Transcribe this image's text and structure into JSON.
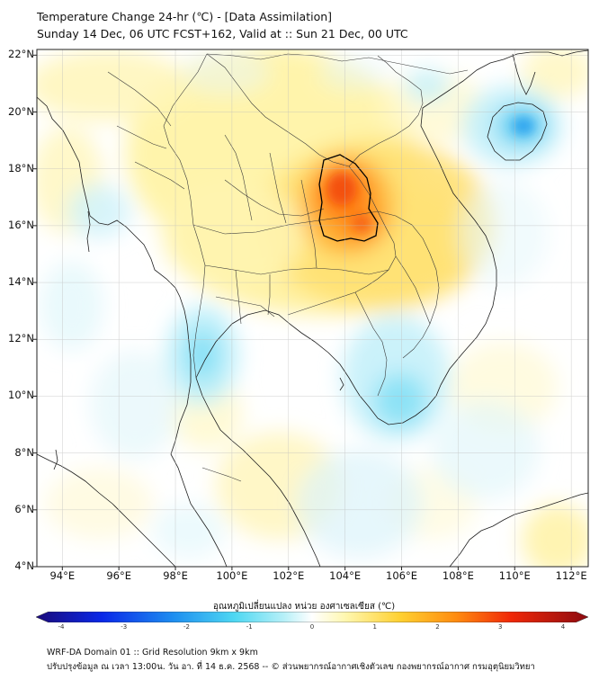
{
  "header": {
    "title_line1": "Temperature Change 24-hr (℃) - [Data Assimilation]",
    "title_line2": "Sunday 14 Dec, 06 UTC FCST+162, Valid at :: Sun 21 Dec, 00 UTC"
  },
  "map": {
    "lat_labels": [
      "22°N",
      "20°N",
      "18°N",
      "16°N",
      "14°N",
      "12°N",
      "10°N",
      "8°N",
      "6°N",
      "4°N"
    ],
    "lon_labels": [
      "94°E",
      "96°E",
      "98°E",
      "100°E",
      "102°E",
      "104°E",
      "106°E",
      "108°E",
      "110°E",
      "112°E"
    ],
    "lat_range": [
      4,
      22.2
    ],
    "lon_range": [
      93.1,
      112.6
    ],
    "background_color": "#ffffff",
    "grid": true
  },
  "colorbar": {
    "title": "อุณหภูมิเปลี่ยนแปลง หน่วย องศาเซลเซียส (℃)",
    "tick_labels": [
      "-4",
      "-3",
      "-2",
      "-1",
      "0",
      "1",
      "2",
      "3",
      "4"
    ],
    "range": [
      -4,
      4
    ],
    "colors": [
      "#1a0a7a",
      "#0a28e8",
      "#1e8ff0",
      "#4fd8f2",
      "#b8f0f8",
      "#ffffff",
      "#fff7b0",
      "#ffd030",
      "#ff8c10",
      "#f02808",
      "#8c0a10"
    ]
  },
  "footer": {
    "line1": "WRF-DA Domain 01 :: Grid Resolution 9km x 9km",
    "line2": "ปรับปรุงข้อมูล ณ เวลา 13:00น. วัน อา. ที่ 14 ธ.ค. 2568 -- © ส่วนพยากรณ์อากาศเชิงตัวเลข กองพยากรณ์อากาศ กรมอุตุนิยมวิทยา"
  }
}
